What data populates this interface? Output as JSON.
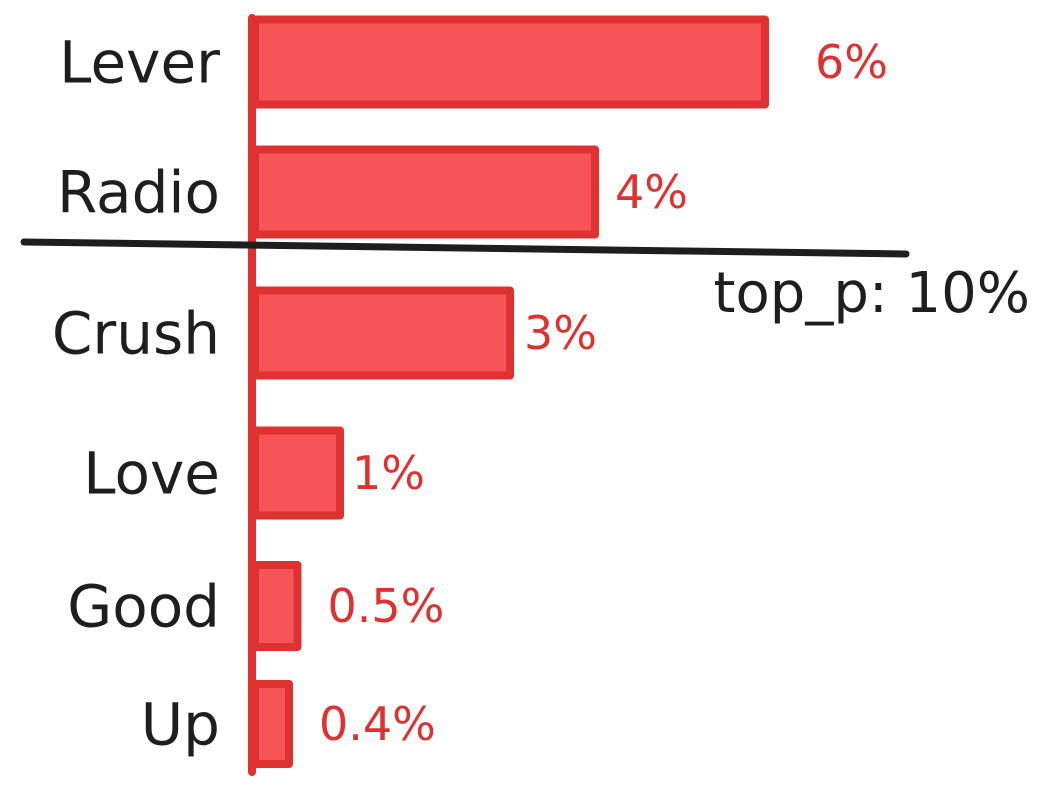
{
  "chart_data": {
    "type": "bar",
    "orientation": "horizontal",
    "categories": [
      "Lever",
      "Radio",
      "Crush",
      "Love",
      "Good",
      "Up"
    ],
    "values": [
      6,
      4,
      3,
      1,
      0.5,
      0.4
    ],
    "value_labels": [
      "6%",
      "4%",
      "3%",
      "1%",
      "0.5%",
      "0.4%"
    ],
    "unit": "%",
    "annotation": {
      "text": "top_p: 10%",
      "after_category_index": 1
    },
    "colors": {
      "bar_fill": "#f75457",
      "bar_stroke": "#e03131",
      "value_label": "#e03131",
      "text": "#1e1e1e",
      "cutoff_line": "#1e1e1e"
    }
  }
}
